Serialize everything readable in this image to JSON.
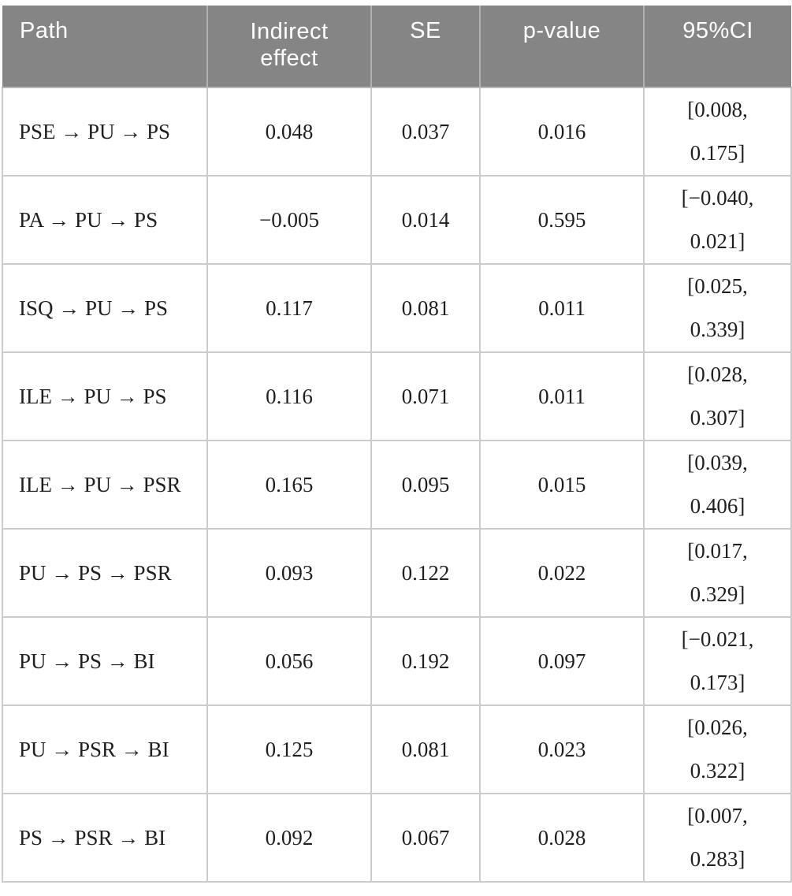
{
  "colors": {
    "header_bg": "#858585",
    "header_text": "#ffffff",
    "body_text": "#1f1f1f",
    "cell_border": "#cbcbcb",
    "header_separator": "#b0b0b0"
  },
  "table": {
    "columns": [
      {
        "key": "path",
        "label": "Path"
      },
      {
        "key": "indirect_effect",
        "label": "Indirect effect"
      },
      {
        "key": "se",
        "label": "SE"
      },
      {
        "key": "p_value",
        "label": "p-value"
      },
      {
        "key": "ci",
        "label": "95%CI"
      }
    ],
    "rows": [
      {
        "path": "PSE → PU → PS",
        "indirect_effect": "0.048",
        "se": "0.037",
        "p_value": "0.016",
        "ci_lines": [
          "[0.008,",
          "0.175]"
        ]
      },
      {
        "path": "PA → PU → PS",
        "indirect_effect": "−0.005",
        "se": "0.014",
        "p_value": "0.595",
        "ci_lines": [
          "[−0.040,",
          "0.021]"
        ]
      },
      {
        "path": "ISQ → PU → PS",
        "indirect_effect": "0.117",
        "se": "0.081",
        "p_value": "0.011",
        "ci_lines": [
          "[0.025,",
          "0.339]"
        ]
      },
      {
        "path": "ILE → PU → PS",
        "indirect_effect": "0.116",
        "se": "0.071",
        "p_value": "0.011",
        "ci_lines": [
          "[0.028,",
          "0.307]"
        ]
      },
      {
        "path": "ILE → PU → PSR",
        "indirect_effect": "0.165",
        "se": "0.095",
        "p_value": "0.015",
        "ci_lines": [
          "[0.039,",
          "0.406]"
        ]
      },
      {
        "path": "PU → PS → PSR",
        "indirect_effect": "0.093",
        "se": "0.122",
        "p_value": "0.022",
        "ci_lines": [
          "[0.017,",
          "0.329]"
        ]
      },
      {
        "path": "PU → PS → BI",
        "indirect_effect": "0.056",
        "se": "0.192",
        "p_value": "0.097",
        "ci_lines": [
          "[−0.021,",
          "0.173]"
        ]
      },
      {
        "path": "PU → PSR → BI",
        "indirect_effect": "0.125",
        "se": "0.081",
        "p_value": "0.023",
        "ci_lines": [
          "[0.026,",
          "0.322]"
        ]
      },
      {
        "path": "PS → PSR → BI",
        "indirect_effect": "0.092",
        "se": "0.067",
        "p_value": "0.028",
        "ci_lines": [
          "[0.007,",
          "0.283]"
        ]
      }
    ]
  }
}
